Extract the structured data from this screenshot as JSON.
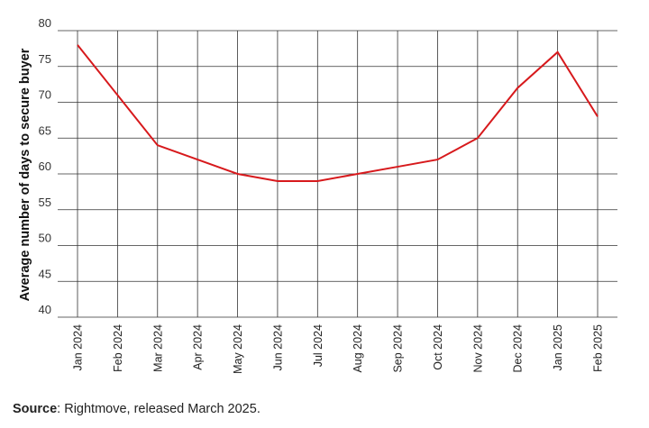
{
  "chart_data": {
    "type": "line",
    "title": "",
    "xlabel": "",
    "ylabel": "Average number of days to secure buyer",
    "ylim": [
      40,
      80
    ],
    "yticks": [
      40,
      45,
      50,
      55,
      60,
      65,
      70,
      75,
      80
    ],
    "grid": true,
    "legend": "none",
    "categories": [
      "Jan 2024",
      "Feb 2024",
      "Mar 2024",
      "Apr 2024",
      "May 2024",
      "Jun 2024",
      "Jul 2024",
      "Aug 2024",
      "Sep 2024",
      "Oct 2024",
      "Nov 2024",
      "Dec 2024",
      "Jan 2025",
      "Feb 2025"
    ],
    "series": [
      {
        "color": "#d7191c",
        "values": [
          78,
          71,
          64,
          62,
          60,
          59,
          59,
          60,
          61,
          62,
          65,
          72,
          77,
          68
        ]
      }
    ]
  },
  "source": {
    "label": "Source",
    "text": ": Rightmove, released March 2025."
  }
}
